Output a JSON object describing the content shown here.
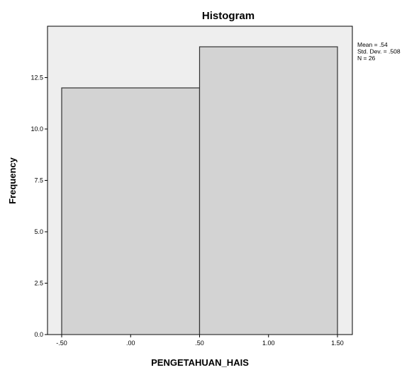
{
  "chart_data": {
    "type": "bar",
    "title": "Histogram",
    "xlabel": "PENGETAHUAN_HAIS",
    "ylabel": "Frequency",
    "bins": [
      {
        "start": -0.5,
        "end": 0.5,
        "value": 12
      },
      {
        "start": 0.5,
        "end": 1.5,
        "value": 14
      }
    ],
    "xlim": [
      -0.5,
      1.5
    ],
    "ylim": [
      0,
      15
    ],
    "xticks": [
      {
        "value": -0.5,
        "label": "-.50"
      },
      {
        "value": 0.0,
        "label": ".00"
      },
      {
        "value": 0.5,
        "label": ".50"
      },
      {
        "value": 1.0,
        "label": "1.00"
      },
      {
        "value": 1.5,
        "label": "1.50"
      }
    ],
    "yticks": [
      {
        "value": 0,
        "label": "0.0"
      },
      {
        "value": 2.5,
        "label": "2.5"
      },
      {
        "value": 5,
        "label": "5.0"
      },
      {
        "value": 7.5,
        "label": "7.5"
      },
      {
        "value": 10,
        "label": "10.0"
      },
      {
        "value": 12.5,
        "label": "12.5"
      }
    ],
    "stats": [
      "Mean = .54",
      "Std. Dev. = .508",
      "N = 26"
    ],
    "grid": false,
    "legend": "none",
    "colors": {
      "plot_background": "#eeeeee",
      "bar_fill": "#d3d3d3",
      "bar_stroke": "#333333",
      "frame": "#000000"
    }
  }
}
